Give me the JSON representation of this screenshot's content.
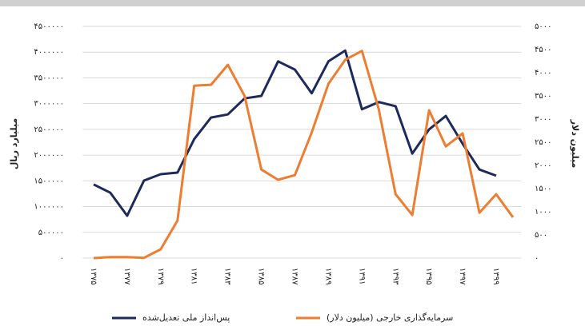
{
  "chart_data": {
    "type": "line",
    "categories": [
      "۱۳۷۵",
      null,
      "۱۳۷۷",
      null,
      "۱۳۷۹",
      null,
      "۱۳۸۱",
      null,
      "۱۳۸۳",
      null,
      "۱۳۸۵",
      null,
      "۱۳۸۷",
      null,
      "۱۳۸۹",
      null,
      "۱۳۹۱",
      null,
      "۱۳۹۳",
      null,
      "۱۳۹۵",
      null,
      "۱۳۹۷",
      null,
      "۱۳۹۹",
      null
    ],
    "series": [
      {
        "name": "پس‌انداز ملی تعدیل‌شده",
        "color": "#1f2a5c",
        "axis": "y",
        "values": [
          1430000,
          1270000,
          822000,
          1505000,
          1630000,
          1660000,
          2310000,
          2730000,
          2790000,
          3100000,
          3150000,
          3820000,
          3660000,
          3200000,
          3820000,
          4030000,
          2890000,
          3030000,
          2950000,
          2030000,
          2500000,
          2760000,
          2220000,
          1720000,
          1600000,
          null
        ]
      },
      {
        "name": "سرمایه‌گذاری خارجی (میلیون دلار)",
        "color": "#ed7d31",
        "axis": "y2",
        "values": [
          0,
          20,
          20,
          5,
          190,
          810,
          3720,
          3740,
          4170,
          3500,
          1910,
          1690,
          1790,
          2710,
          3760,
          4280,
          4470,
          3210,
          1380,
          930,
          3190,
          2410,
          2690,
          980,
          1380,
          880
        ]
      }
    ],
    "y_label": "میلیارد ریال",
    "y2_label": "میلیون دلار",
    "ylim": [
      0,
      4500000
    ],
    "yticks": [
      {
        "value": 0,
        "label": "۰"
      },
      {
        "value": 500000,
        "label": "۵۰۰۰۰۰"
      },
      {
        "value": 1000000,
        "label": "۱۰۰۰۰۰۰"
      },
      {
        "value": 1500000,
        "label": "۱۵۰۰۰۰۰"
      },
      {
        "value": 2000000,
        "label": "۲۰۰۰۰۰۰"
      },
      {
        "value": 2500000,
        "label": "۲۵۰۰۰۰۰"
      },
      {
        "value": 3000000,
        "label": "۳۰۰۰۰۰۰"
      },
      {
        "value": 3500000,
        "label": "۳۵۰۰۰۰۰"
      },
      {
        "value": 4000000,
        "label": "۴۰۰۰۰۰۰"
      },
      {
        "value": 4500000,
        "label": "۴۵۰۰۰۰۰"
      }
    ],
    "y2lim": [
      0,
      5000
    ],
    "y2ticks": [
      {
        "value": 0,
        "label": "۰"
      },
      {
        "value": 500,
        "label": "۵۰۰"
      },
      {
        "value": 1000,
        "label": "۱۰۰۰"
      },
      {
        "value": 1500,
        "label": "۱۵۰۰"
      },
      {
        "value": 2000,
        "label": "۲۰۰۰"
      },
      {
        "value": 2500,
        "label": "۲۵۰۰"
      },
      {
        "value": 3000,
        "label": "۳۰۰۰"
      },
      {
        "value": 3500,
        "label": "۳۵۰۰"
      },
      {
        "value": 4000,
        "label": "۴۰۰۰"
      },
      {
        "value": 4500,
        "label": "۴۵۰۰"
      },
      {
        "value": 5000,
        "label": "۵۰۰۰"
      }
    ],
    "grid": true,
    "legend": "bottom"
  }
}
